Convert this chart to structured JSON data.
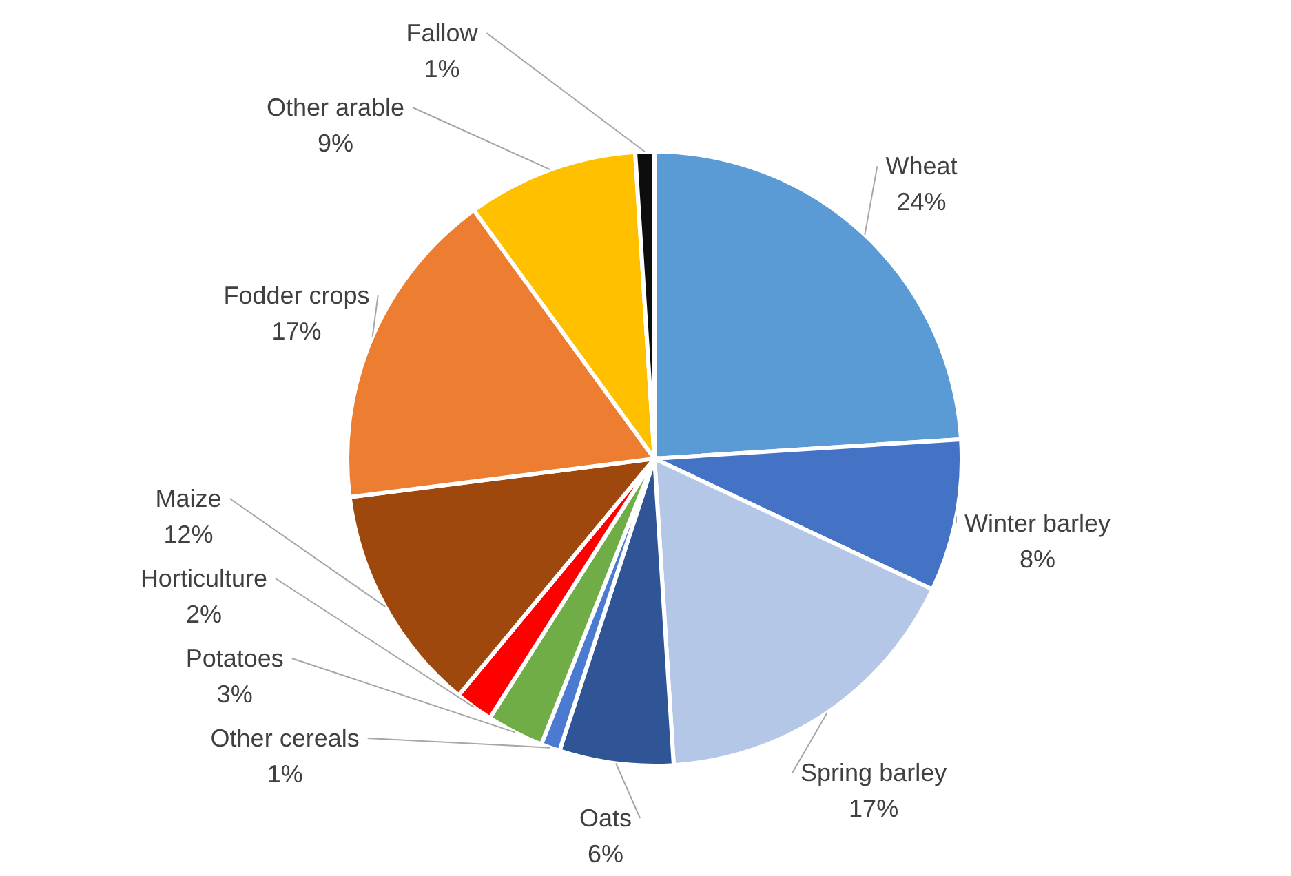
{
  "chart_data": {
    "type": "pie",
    "categories": [
      "Wheat",
      "Winter barley",
      "Spring barley",
      "Oats",
      "Other cereals",
      "Potatoes",
      "Horticulture",
      "Maize",
      "Fodder crops",
      "Other arable",
      "Fallow"
    ],
    "values": [
      24,
      8,
      17,
      6,
      1,
      3,
      2,
      12,
      17,
      9,
      1
    ],
    "value_labels": [
      "24%",
      "8%",
      "17%",
      "6%",
      "1%",
      "3%",
      "2%",
      "12%",
      "17%",
      "9%",
      "1%"
    ],
    "colors": [
      "#5b9bd5",
      "#4472c4",
      "#b4c7e7",
      "#2f5597",
      "#4a7bd0",
      "#70ad47",
      "#ff0000",
      "#9e480e",
      "#ed7d31",
      "#ffc000",
      "#0d0d0d"
    ]
  }
}
